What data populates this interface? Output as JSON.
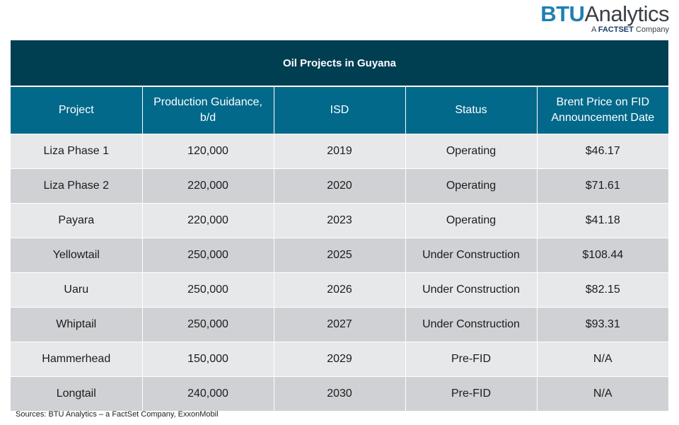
{
  "logo": {
    "brand": "BTU",
    "product": "Analytics",
    "tagline_prefix": "A",
    "tagline_brand": "FACTSET",
    "tagline_suffix": "Company"
  },
  "title": "Oil Projects in Guyana",
  "columns": [
    "Project",
    "Production Guidance, b/d",
    "ISD",
    "Status",
    "Brent Price on FID Announcement Date"
  ],
  "rows": [
    [
      "Liza Phase 1",
      "120,000",
      "2019",
      "Operating",
      "$46.17"
    ],
    [
      "Liza Phase 2",
      "220,000",
      "2020",
      "Operating",
      "$71.61"
    ],
    [
      "Payara",
      "220,000",
      "2023",
      "Operating",
      "$41.18"
    ],
    [
      "Yellowtail",
      "250,000",
      "2025",
      "Under Construction",
      "$108.44"
    ],
    [
      "Uaru",
      "250,000",
      "2026",
      "Under Construction",
      "$82.15"
    ],
    [
      "Whiptail",
      "250,000",
      "2027",
      "Under Construction",
      "$93.31"
    ],
    [
      "Hammerhead",
      "150,000",
      "2029",
      "Pre-FID",
      "N/A"
    ],
    [
      "Longtail",
      "240,000",
      "2030",
      "Pre-FID",
      "N/A"
    ]
  ],
  "source": "Sources: BTU Analytics – a FactSet Company, ExxonMobil",
  "colors": {
    "title_bg": "#003e52",
    "header_bg": "#02698a",
    "row_light": "#e7e8ea",
    "row_dark": "#cfd1d4",
    "brand_blue": "#1f7fb4"
  }
}
